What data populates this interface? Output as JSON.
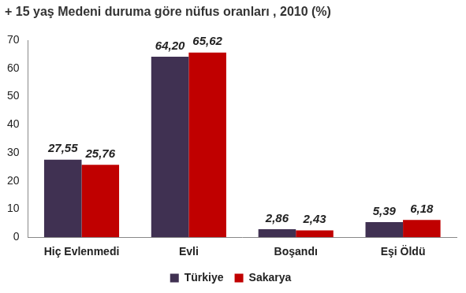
{
  "chart_data": {
    "type": "bar",
    "title": "+ 15 yaş Medeni duruma göre nüfus oranları , 2010 (%)",
    "categories": [
      "Hiç Evlenmedi",
      "Evli",
      "Boşandı",
      "Eşi Öldü"
    ],
    "series": [
      {
        "name": "Türkiye",
        "color": "#403152",
        "values": [
          27.55,
          64.2,
          2.86,
          5.39
        ],
        "value_labels": [
          "27,55",
          "64,20",
          "2,86",
          "5,39"
        ]
      },
      {
        "name": "Sakarya",
        "color": "#c00000",
        "values": [
          25.76,
          65.62,
          2.43,
          6.18
        ],
        "value_labels": [
          "25,76",
          "65,62",
          "2,43",
          "6,18"
        ]
      }
    ],
    "ylim": [
      0,
      70
    ],
    "yticks": [
      0,
      10,
      20,
      30,
      40,
      50,
      60,
      70
    ],
    "grid": false,
    "legend": "bottom",
    "data_labels": true
  }
}
